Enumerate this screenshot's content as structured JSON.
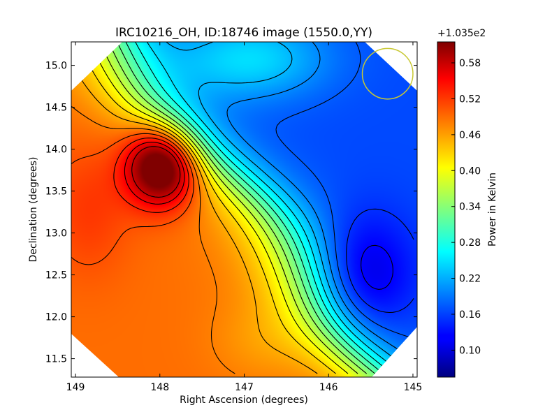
{
  "chart_data": {
    "type": "heatmap",
    "title": "IRC10216_OH, ID:18746 image (1550.0,YY)",
    "xlabel": "Right Ascension (degrees)",
    "ylabel": "Declination (degrees)",
    "xlim": [
      149.05,
      144.95
    ],
    "ylim": [
      11.28,
      15.28
    ],
    "x_ticks": [
      149,
      148,
      147,
      146,
      145
    ],
    "x_tick_labels": [
      "149",
      "148",
      "147",
      "146",
      "145"
    ],
    "y_ticks": [
      11.5,
      12.0,
      12.5,
      13.0,
      13.5,
      14.0,
      14.5,
      15.0
    ],
    "y_tick_labels": [
      "11.5",
      "12.0",
      "12.5",
      "13.0",
      "13.5",
      "14.0",
      "14.5",
      "15.0"
    ],
    "colorbar": {
      "label": "Power in Kelvin",
      "offset_text": "+1.035e2",
      "range": [
        0.055,
        0.615
      ],
      "ticks": [
        0.1,
        0.16,
        0.22,
        0.28,
        0.34,
        0.4,
        0.46,
        0.52,
        0.58
      ],
      "tick_labels": [
        "0.10",
        "0.16",
        "0.22",
        "0.28",
        "0.34",
        "0.40",
        "0.46",
        "0.52",
        "0.58"
      ],
      "colormap": "jet"
    },
    "peak": {
      "ra": 148.08,
      "dec": 13.82,
      "value": 0.6
    },
    "minimum": {
      "ra": 145.25,
      "dec": 12.45,
      "value": 0.06
    },
    "beam_circle": {
      "ra": 145.3,
      "dec": 14.9,
      "radius_deg": 0.3,
      "color": "#c8c832"
    },
    "grid": false,
    "contours": true
  }
}
